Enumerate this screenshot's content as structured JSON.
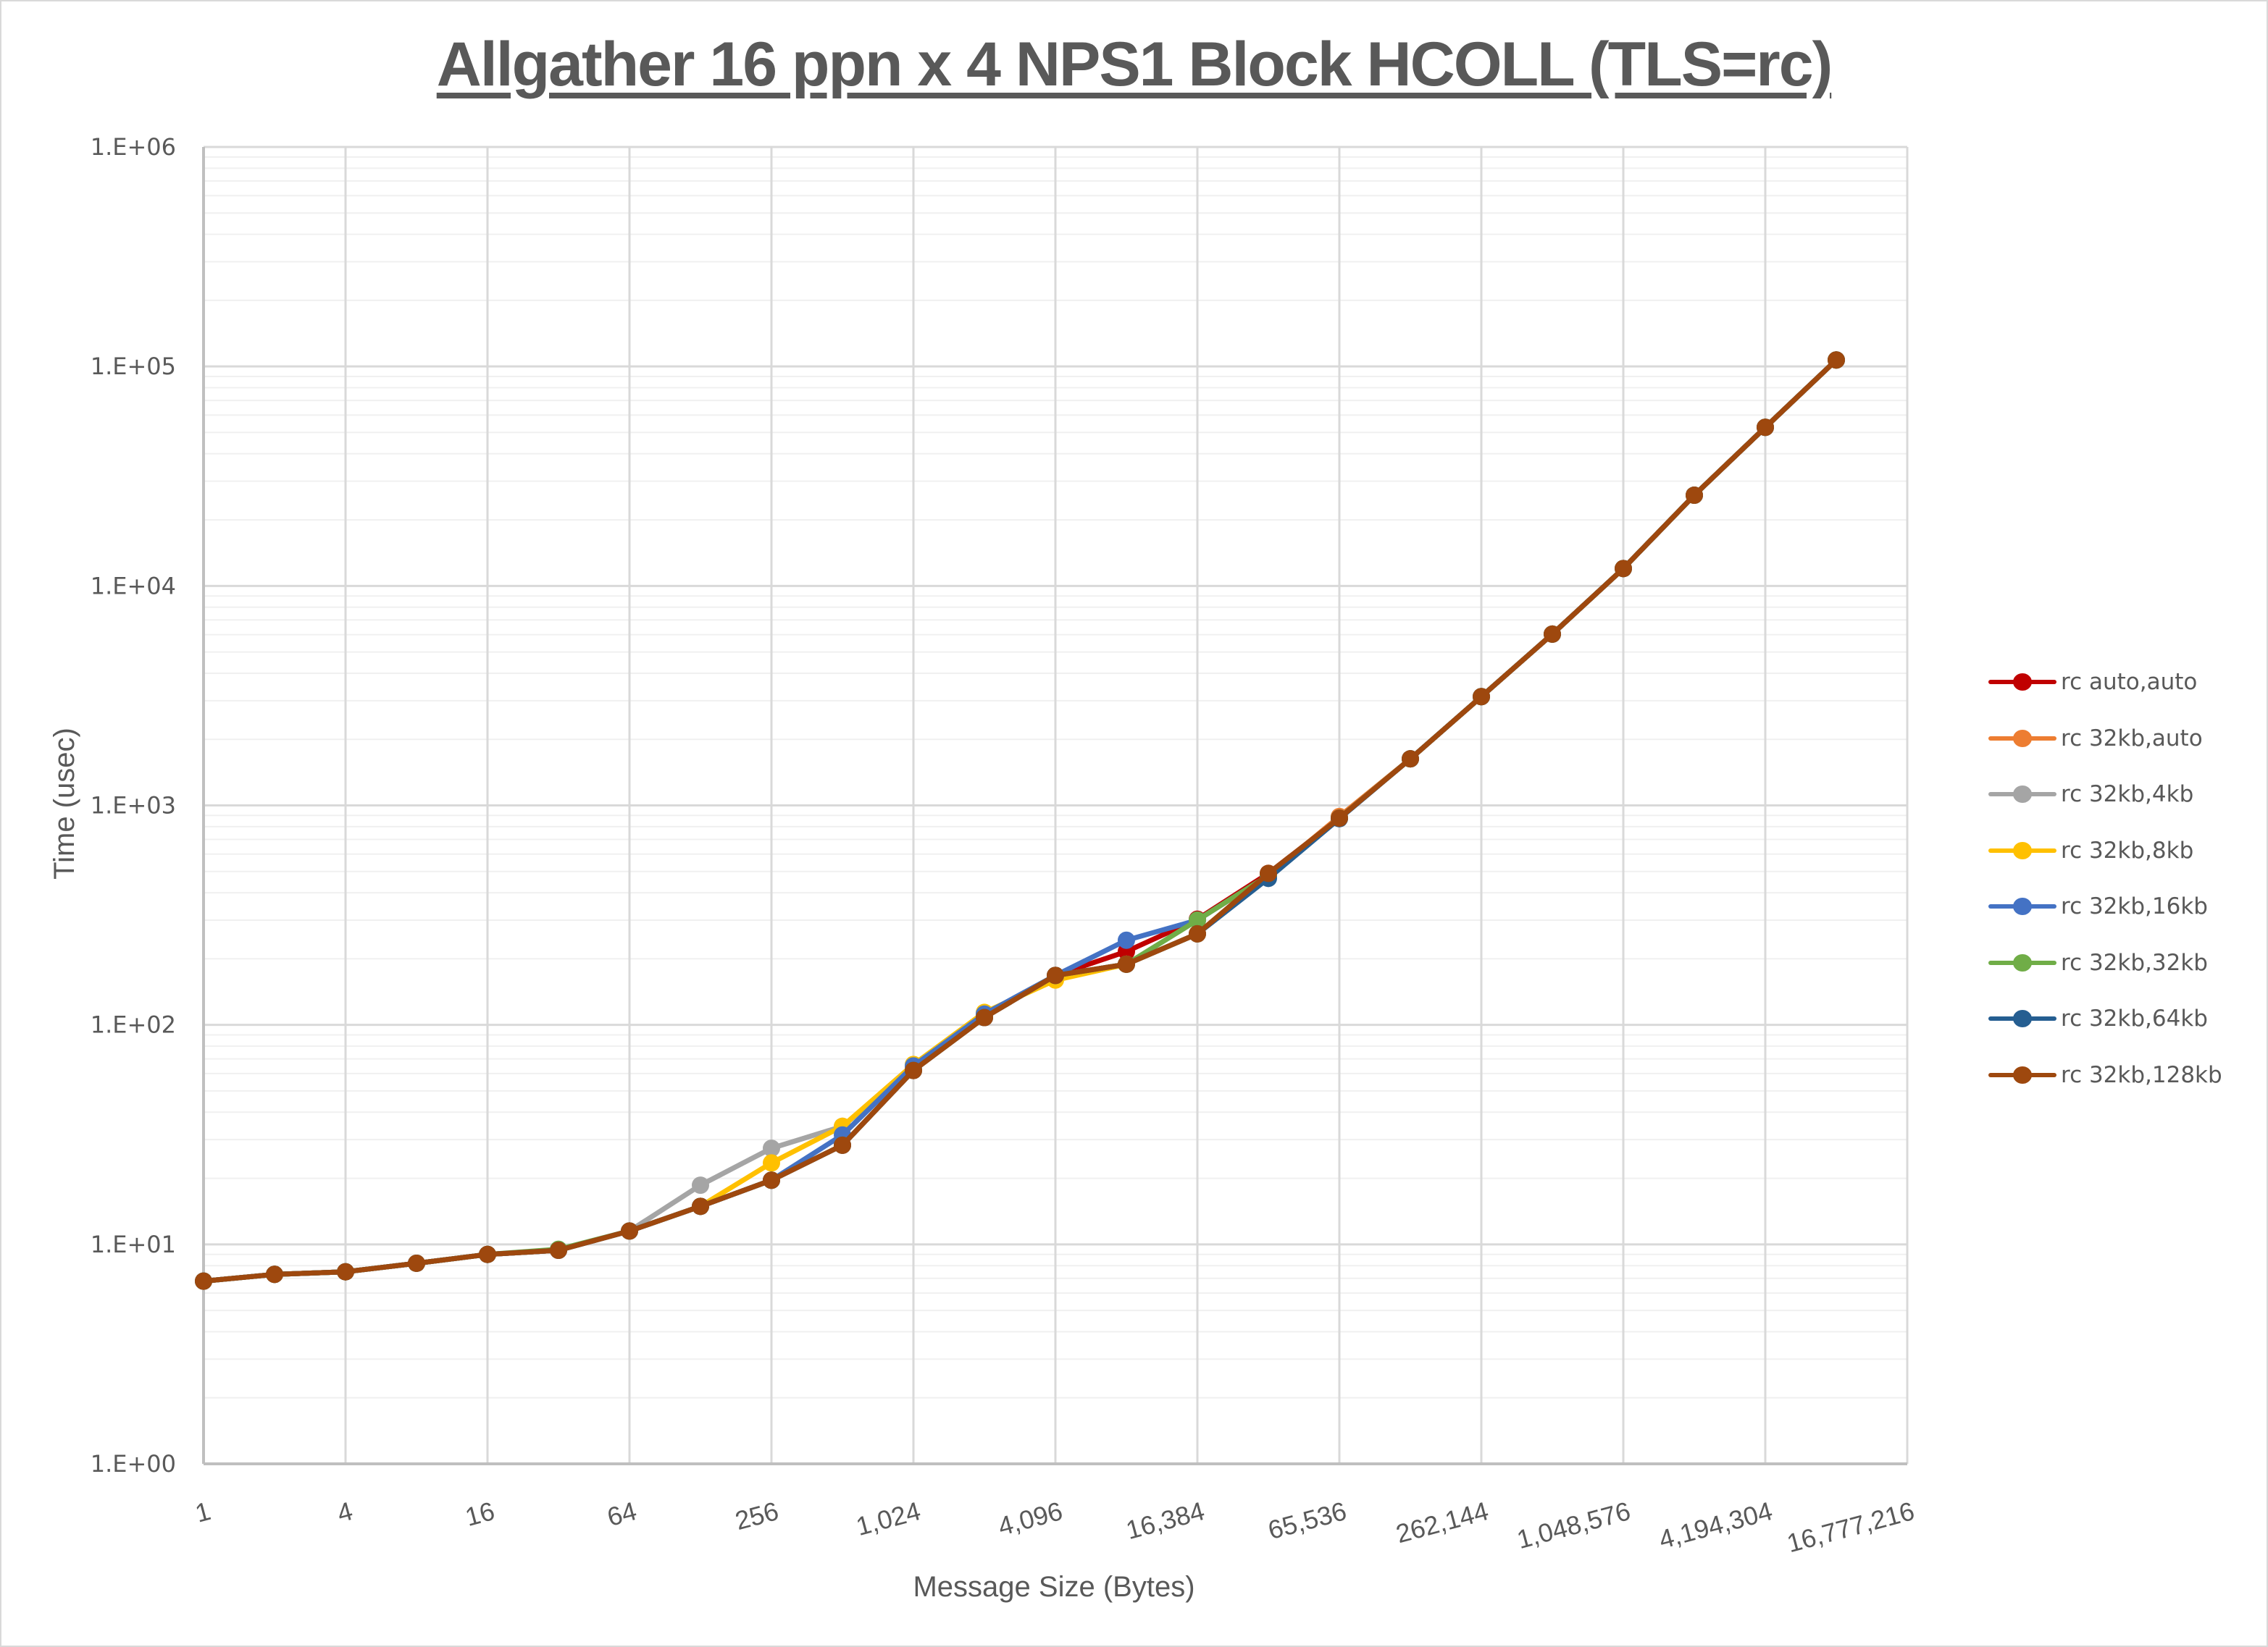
{
  "chart_data": {
    "type": "line",
    "title": "Allgather 16 ppn x 4 NPS1 Block HCOLL (TLS=rc)",
    "xlabel": "Message Size (Bytes)",
    "ylabel": "Time (usec)",
    "xscale": "log2",
    "yscale": "log10",
    "ylim": [
      1,
      1000000
    ],
    "grid": true,
    "legend_position": "right",
    "x_tick_labels": [
      "1",
      "4",
      "16",
      "64",
      "256",
      "1,024",
      "4,096",
      "16,384",
      "65,536",
      "262,144",
      "1,048,576",
      "4,194,304",
      "16,777,216"
    ],
    "y_tick_labels": [
      "1.E+00",
      "1.E+01",
      "1.E+02",
      "1.E+03",
      "1.E+04",
      "1.E+05",
      "1.E+06"
    ],
    "x": [
      1,
      2,
      4,
      8,
      16,
      32,
      64,
      128,
      256,
      512,
      1024,
      2048,
      4096,
      8192,
      16384,
      32768,
      65536,
      131072,
      262144,
      524288,
      1048576,
      2097152,
      4194304,
      8388608
    ],
    "series": [
      {
        "name": "rc auto,auto",
        "color": "#c00000",
        "values": [
          6.8,
          7.3,
          7.5,
          8.2,
          9.0,
          9.4,
          11.5,
          14.9,
          19.6,
          28.3,
          62,
          108,
          168,
          216,
          303,
          490,
          875,
          1630,
          3130,
          6030,
          12000,
          25900,
          52800,
          107000
        ]
      },
      {
        "name": "rc 32kb,auto",
        "color": "#ed7d31",
        "values": [
          6.8,
          7.3,
          7.5,
          8.2,
          9.0,
          9.4,
          11.5,
          14.9,
          19.6,
          28.3,
          62,
          108,
          168,
          189,
          260,
          480,
          890,
          1630,
          3130,
          6030,
          12000,
          25900,
          52800,
          107000
        ]
      },
      {
        "name": "rc 32kb,4kb",
        "color": "#a5a5a5",
        "values": [
          6.8,
          7.3,
          7.5,
          8.2,
          9.0,
          9.4,
          11.5,
          18.6,
          27.4,
          34.5,
          64,
          112,
          168,
          189,
          260,
          480,
          875,
          1630,
          3130,
          6030,
          12000,
          25900,
          52800,
          107000
        ]
      },
      {
        "name": "rc 32kb,8kb",
        "color": "#ffc000",
        "values": [
          6.8,
          7.3,
          7.5,
          8.2,
          9.0,
          9.4,
          11.5,
          14.9,
          23.5,
          34.5,
          66,
          114,
          160,
          189,
          260,
          480,
          875,
          1630,
          3130,
          6030,
          12000,
          25900,
          52800,
          107000
        ]
      },
      {
        "name": "rc 32kb,16kb",
        "color": "#4472c4",
        "values": [
          6.8,
          7.3,
          7.5,
          8.2,
          9.0,
          9.4,
          11.5,
          14.9,
          19.6,
          31.5,
          65,
          112,
          168,
          243,
          300,
          480,
          875,
          1630,
          3130,
          6030,
          12000,
          25900,
          52800,
          107000
        ]
      },
      {
        "name": "rc 32kb,32kb",
        "color": "#70ad47",
        "values": [
          6.8,
          7.3,
          7.5,
          8.2,
          9.0,
          9.5,
          11.5,
          14.9,
          19.6,
          28.3,
          62,
          108,
          168,
          189,
          300,
          480,
          875,
          1630,
          3130,
          6030,
          12000,
          25900,
          52800,
          107000
        ]
      },
      {
        "name": "rc 32kb,64kb",
        "color": "#255e91",
        "values": [
          6.8,
          7.3,
          7.5,
          8.2,
          9.0,
          9.4,
          11.5,
          14.9,
          19.6,
          28.3,
          62,
          108,
          168,
          189,
          260,
          465,
          870,
          1630,
          3130,
          6030,
          12000,
          25900,
          52800,
          107000
        ]
      },
      {
        "name": "rc 32kb,128kb",
        "color": "#9e480e",
        "values": [
          6.8,
          7.3,
          7.5,
          8.2,
          9.0,
          9.4,
          11.5,
          14.9,
          19.6,
          28.3,
          62,
          108,
          168,
          189,
          260,
          490,
          875,
          1630,
          3130,
          6030,
          12000,
          25900,
          52800,
          107000
        ]
      }
    ]
  }
}
